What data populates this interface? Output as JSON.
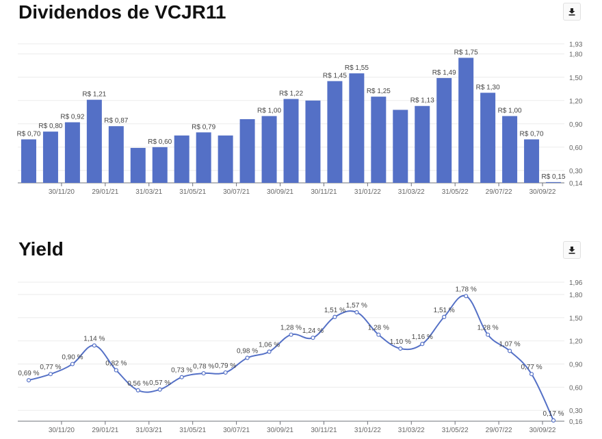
{
  "title_dividends": "Dividendos de VCJR11",
  "title_yield": "Yield",
  "icons": {
    "download": "download-icon"
  },
  "colors": {
    "bar": "#5470c6",
    "line": "#5470c6",
    "grid": "#ebebeb",
    "axis_text": "#666666"
  },
  "chart_data": [
    {
      "type": "bar",
      "x_ticks": [
        "30/11/20",
        "29/01/21",
        "31/03/21",
        "31/05/21",
        "30/07/21",
        "30/09/21",
        "30/11/21",
        "31/01/22",
        "31/03/22",
        "31/05/22",
        "29/07/22",
        "30/09/22"
      ],
      "values": [
        0.7,
        0.8,
        0.92,
        1.21,
        0.87,
        0.59,
        0.6,
        0.75,
        0.79,
        0.75,
        0.96,
        1.0,
        1.22,
        1.2,
        1.45,
        1.55,
        1.25,
        1.08,
        1.13,
        1.49,
        1.75,
        1.3,
        1.0,
        0.7,
        0.15
      ],
      "value_labels": [
        "R$ 0,70",
        "R$ 0,80",
        "R$ 0,92",
        "R$ 1,21",
        "R$ 0,87",
        "",
        "R$ 0,60",
        "",
        "R$ 0,79",
        "",
        "",
        "R$ 1,00",
        "R$ 1,22",
        "",
        "R$ 1,45",
        "R$ 1,55",
        "R$ 1,25",
        "",
        "R$ 1,13",
        "R$ 1,49",
        "R$ 1,75",
        "R$ 1,30",
        "R$ 1,00",
        "R$ 0,70",
        "R$ 0,15"
      ],
      "y_ticks": [
        "1,93",
        "1,80",
        "1,50",
        "1,20",
        "0,90",
        "0,60",
        "0,30",
        "0,14"
      ],
      "y_tick_values": [
        1.93,
        1.8,
        1.5,
        1.2,
        0.9,
        0.6,
        0.3,
        0.14
      ],
      "ylim": [
        0.14,
        1.93
      ]
    },
    {
      "type": "line",
      "x_ticks": [
        "30/11/20",
        "29/01/21",
        "31/03/21",
        "31/05/21",
        "30/07/21",
        "30/09/21",
        "30/11/21",
        "31/01/22",
        "31/03/22",
        "31/05/22",
        "29/07/22",
        "30/09/22"
      ],
      "values": [
        0.69,
        0.77,
        0.9,
        1.14,
        0.82,
        0.56,
        0.57,
        0.73,
        0.78,
        0.79,
        0.98,
        1.06,
        1.28,
        1.24,
        1.51,
        1.57,
        1.28,
        1.1,
        1.16,
        1.51,
        1.78,
        1.28,
        1.07,
        0.77,
        0.17
      ],
      "value_labels": [
        "0,69 %",
        "0,77 %",
        "0,90 %",
        "1,14 %",
        "0,82 %",
        "0,56 %",
        "0,57 %",
        "0,73 %",
        "0,78 %",
        "0,79 %",
        "0,98 %",
        "1,06 %",
        "1,28 %",
        "1,24 %",
        "1,51 %",
        "1,57 %",
        "1,28 %",
        "1,10 %",
        "1,16 %",
        "1,51 %",
        "1,78 %",
        "1,28 %",
        "1,07 %",
        "0,77 %",
        "0,17 %"
      ],
      "y_ticks": [
        "1,96",
        "1,80",
        "1,50",
        "1,20",
        "0,90",
        "0,60",
        "0,30",
        "0,16"
      ],
      "y_tick_values": [
        1.96,
        1.8,
        1.5,
        1.2,
        0.9,
        0.6,
        0.3,
        0.16
      ],
      "ylim": [
        0.16,
        1.96
      ]
    }
  ]
}
